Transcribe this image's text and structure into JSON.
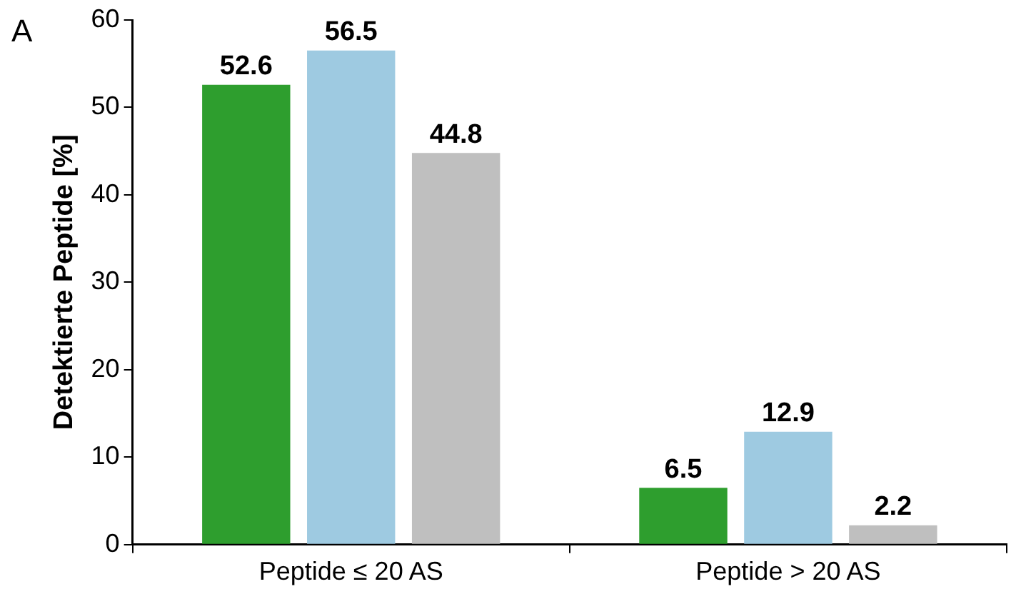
{
  "chart_data": {
    "type": "bar",
    "ylabel": "Detektierte Peptide [%]",
    "annotations": [
      "A"
    ],
    "categories": [
      "Peptide ≤ 20 AS",
      "Peptide > 20 AS"
    ],
    "series": [
      {
        "color": "#2e9e2e",
        "values": [
          52.6,
          6.5
        ]
      },
      {
        "color": "#9ecae1",
        "values": [
          56.5,
          12.9
        ]
      },
      {
        "color": "#bfbfbf",
        "values": [
          44.8,
          2.2
        ]
      }
    ],
    "ylim": [
      0,
      60
    ],
    "yticks": [
      0,
      10,
      20,
      30,
      40,
      50,
      60
    ],
    "grid": false,
    "legend": false,
    "data_labels": true
  }
}
